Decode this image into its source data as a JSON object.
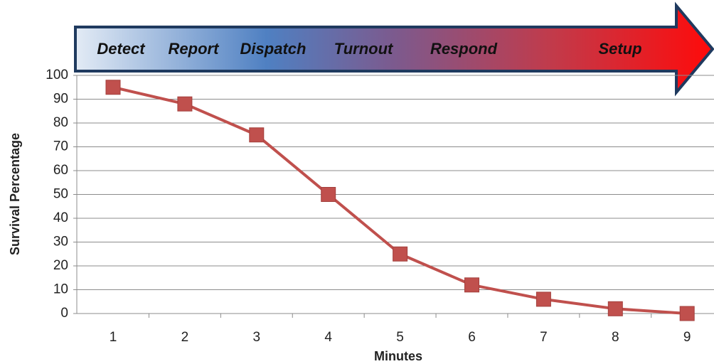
{
  "chart_data": {
    "type": "line",
    "phases": [
      "Detect",
      "Report",
      "Dispatch",
      "Turnout",
      "Respond",
      "Setup"
    ],
    "x_label": "Minutes",
    "y_label": "Survival Percentage",
    "categories": [
      "1",
      "2",
      "3",
      "4",
      "5",
      "6",
      "7",
      "8",
      "9"
    ],
    "values": [
      95,
      88,
      75,
      50,
      25,
      12,
      6,
      2,
      0
    ],
    "color": "#c0504d",
    "ylim": [
      0,
      100
    ],
    "yticks": [
      0,
      10,
      20,
      30,
      40,
      50,
      60,
      70,
      80,
      90,
      100
    ],
    "grid": true
  }
}
